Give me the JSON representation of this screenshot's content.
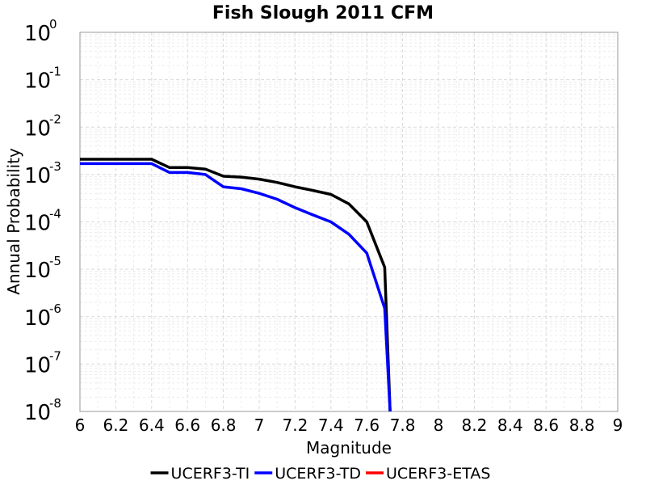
{
  "chart_data": {
    "type": "line",
    "title": "Fish Slough 2011 CFM",
    "xlabel": "Magnitude",
    "ylabel": "Annual Probability",
    "xlim": [
      6,
      9
    ],
    "ylim": [
      1e-08,
      1
    ],
    "y_scale": "log",
    "grid": true,
    "legend_position": "bottom",
    "x_ticks": [
      "6",
      "6.2",
      "6.4",
      "6.6",
      "6.8",
      "7",
      "7.2",
      "7.4",
      "7.6",
      "7.8",
      "8",
      "8.2",
      "8.4",
      "8.6",
      "8.8",
      "9"
    ],
    "y_tick_base": "10",
    "y_tick_exponents": [
      "0",
      "-1",
      "-2",
      "-3",
      "-4",
      "-5",
      "-6",
      "-7",
      "-8"
    ],
    "series": [
      {
        "name": "UCERF3-TI",
        "color": "#000000",
        "x": [
          6.0,
          6.1,
          6.2,
          6.3,
          6.4,
          6.5,
          6.6,
          6.7,
          6.8,
          6.9,
          7.0,
          7.1,
          7.2,
          7.3,
          7.4,
          7.5,
          7.6,
          7.7,
          7.73
        ],
        "y": [
          0.0021,
          0.0021,
          0.0021,
          0.0021,
          0.0021,
          0.0014,
          0.0014,
          0.0013,
          0.00092,
          0.00088,
          0.0008,
          0.00068,
          0.00055,
          0.00046,
          0.00038,
          0.00024,
          0.0001,
          1.1e-05,
          1e-08
        ]
      },
      {
        "name": "UCERF3-TD",
        "color": "#0000ff",
        "x": [
          6.0,
          6.1,
          6.2,
          6.3,
          6.4,
          6.5,
          6.6,
          6.7,
          6.8,
          6.9,
          7.0,
          7.1,
          7.2,
          7.3,
          7.4,
          7.5,
          7.6,
          7.7,
          7.73
        ],
        "y": [
          0.0017,
          0.0017,
          0.0017,
          0.0017,
          0.0017,
          0.0011,
          0.0011,
          0.001,
          0.00055,
          0.0005,
          0.0004,
          0.0003,
          0.0002,
          0.00014,
          0.0001,
          5.5e-05,
          2.2e-05,
          1.5e-06,
          1e-08
        ]
      },
      {
        "name": "UCERF3-ETAS",
        "color": "#ff0000",
        "x": [],
        "y": []
      }
    ]
  }
}
